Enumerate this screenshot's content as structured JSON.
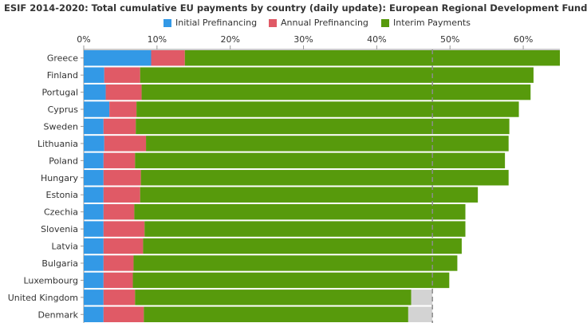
{
  "title": "ESIF 2014-2020: Total cumulative EU payments by country (daily update): European Regional Development Fund",
  "chart_data": {
    "type": "bar",
    "orientation": "horizontal",
    "stacked": true,
    "title": "ESIF 2014-2020: Total cumulative EU payments by country (daily update): European Regional Development Fund",
    "xlabel": "",
    "ylabel": "",
    "x_ticks": [
      "0%",
      "10%",
      "20%",
      "30%",
      "40%",
      "50%",
      "60%"
    ],
    "xlim": [
      0,
      65
    ],
    "legend_position": "top",
    "reference_line": {
      "value": 47.6,
      "style": "dashed"
    },
    "categories": [
      "Greece",
      "Finland",
      "Portugal",
      "Cyprus",
      "Sweden",
      "Lithuania",
      "Poland",
      "Hungary",
      "Estonia",
      "Czechia",
      "Slovenia",
      "Latvia",
      "Bulgaria",
      "Luxembourg",
      "United Kingdom",
      "Denmark"
    ],
    "series": [
      {
        "name": "Initial Prefinancing",
        "color": "#3399e6",
        "values": [
          9.2,
          2.8,
          3.0,
          3.5,
          2.7,
          2.8,
          2.7,
          2.7,
          2.7,
          2.7,
          2.7,
          2.7,
          2.7,
          2.7,
          2.7,
          2.7
        ]
      },
      {
        "name": "Annual Prefinancing",
        "color": "#e05a66",
        "values": [
          4.6,
          4.9,
          4.9,
          3.7,
          4.4,
          5.7,
          4.3,
          5.1,
          5.0,
          4.2,
          5.6,
          5.4,
          4.1,
          4.0,
          4.3,
          5.5
        ]
      },
      {
        "name": "Interim Payments",
        "color": "#579a0c",
        "values": [
          51.2,
          53.7,
          53.1,
          52.2,
          51.0,
          49.5,
          50.5,
          50.2,
          46.1,
          45.2,
          43.8,
          43.5,
          44.2,
          43.2,
          37.7,
          36.1
        ]
      },
      {
        "name": "",
        "color": "#d3d3d3",
        "values": [
          0,
          0,
          0,
          0,
          0,
          0,
          0,
          0,
          0,
          0,
          0,
          0,
          0,
          0,
          2.9,
          3.3
        ]
      }
    ]
  }
}
